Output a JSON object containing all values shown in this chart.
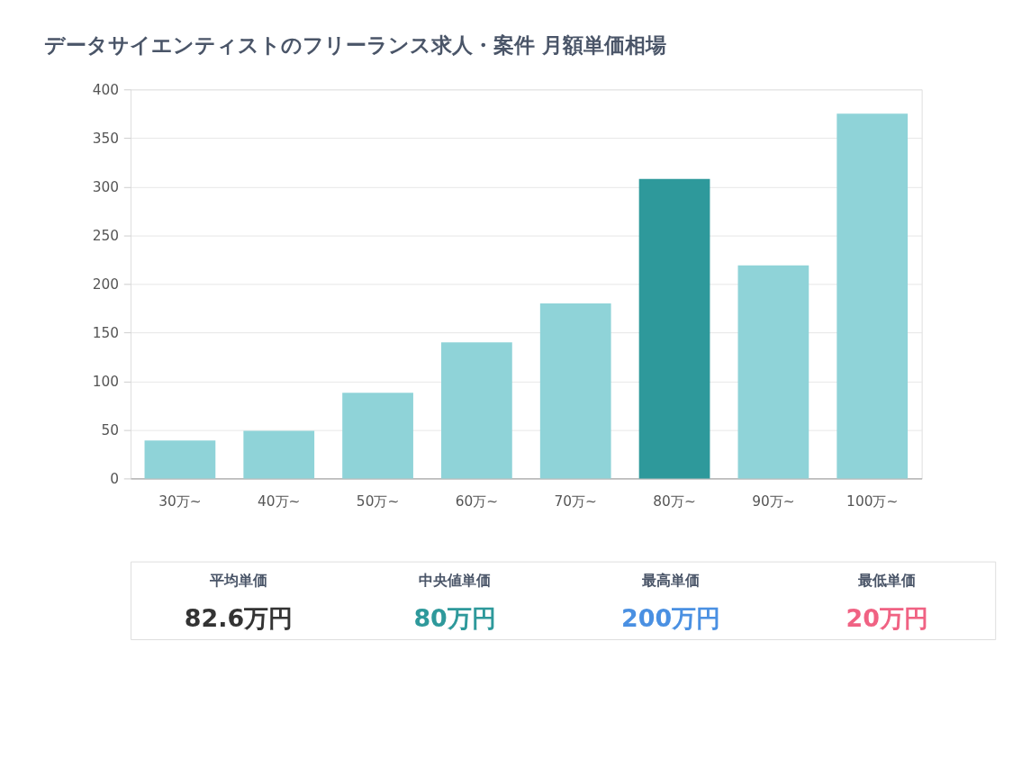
{
  "chart_data": {
    "type": "bar",
    "title": "データサイエンティストのフリーランス求人・案件 月額単価相場",
    "categories": [
      "30万~",
      "40万~",
      "50万~",
      "60万~",
      "70万~",
      "80万~",
      "90万~",
      "100万~"
    ],
    "values": [
      39,
      49,
      88,
      140,
      180,
      308,
      219,
      375
    ],
    "colors": [
      "#8fd3d8",
      "#8fd3d8",
      "#8fd3d8",
      "#8fd3d8",
      "#8fd3d8",
      "#2e999b",
      "#8fd3d8",
      "#8fd3d8"
    ],
    "ylim": [
      0,
      400
    ],
    "yticks": [
      0,
      50,
      100,
      150,
      200,
      250,
      300,
      350,
      400
    ],
    "grid": "y",
    "annotations": [
      "平均単価",
      "82.6万円",
      "中央値単価",
      "80万円",
      "最高単価",
      "200万円",
      "最低単価",
      "20万円"
    ]
  }
}
